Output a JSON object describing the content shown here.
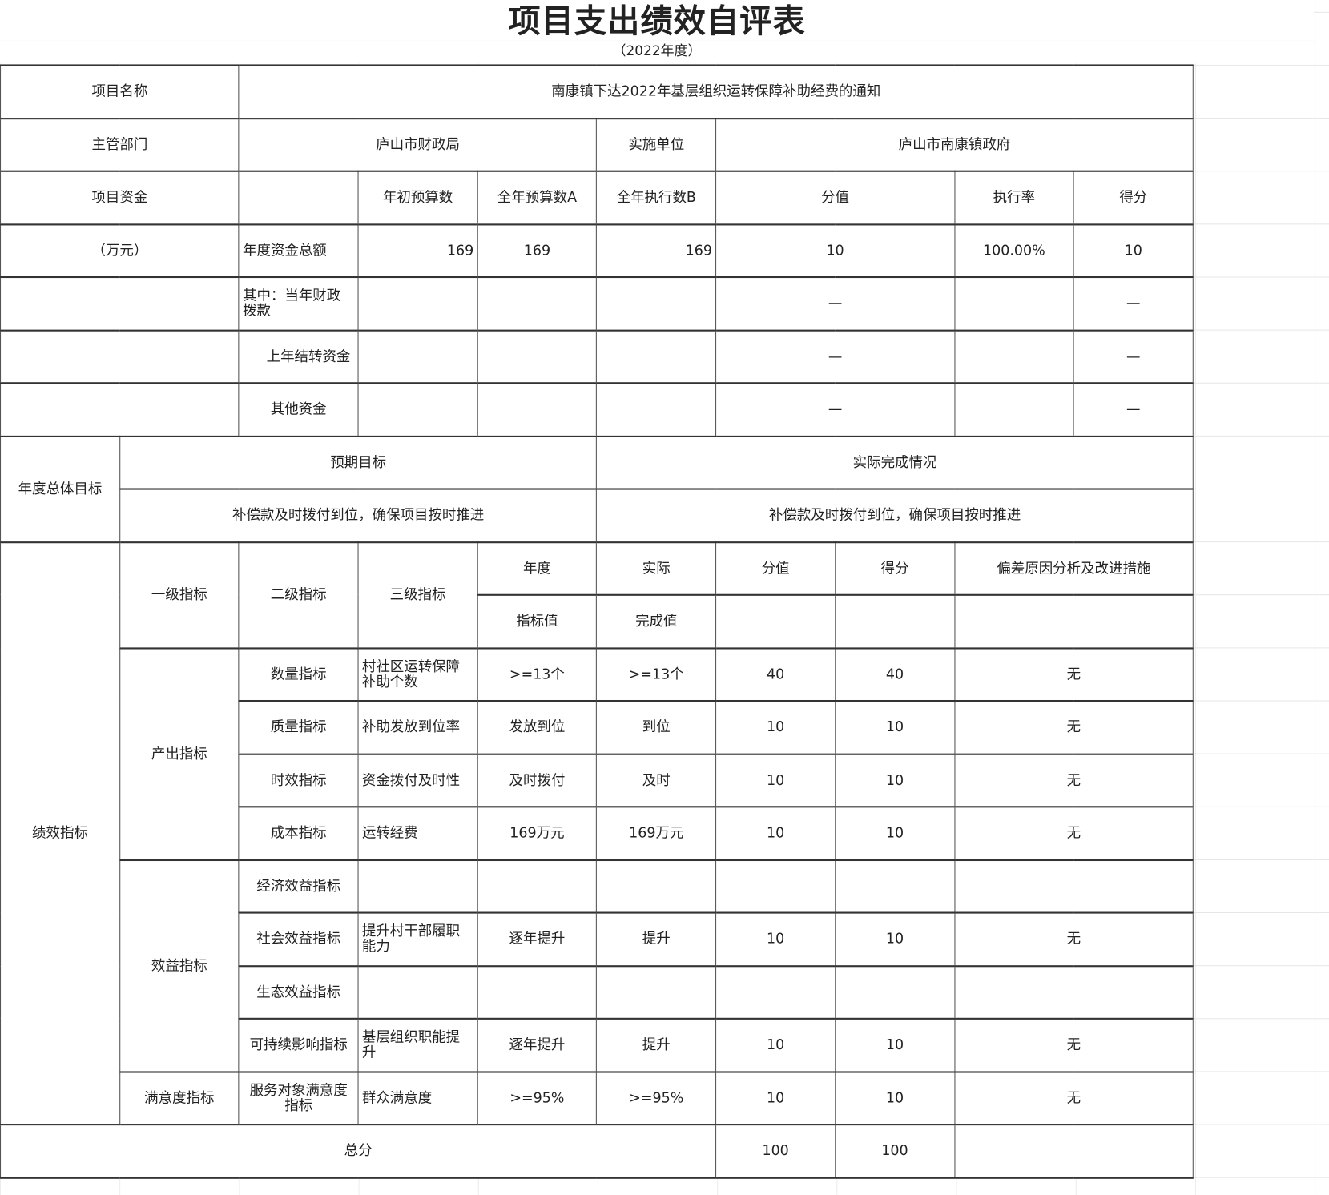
{
  "title": "项目支出绩效自评表",
  "subtitle": "（2022年度）",
  "rows": [
    [
      "项目名称",
      "南康镇下达2022年基层组织运转保障补助经费的通知"
    ],
    [
      "主管部门",
      "庐山市财政局",
      "实施单位",
      "庐山市南康镇政府"
    ],
    [
      "项目资金",
      "",
      "年初预算数",
      "全年预算数A",
      "全年执行数B",
      "分值",
      "执行率",
      "得分"
    ],
    [
      "（万元）",
      "年度资金总额",
      "169",
      "169",
      "169",
      "10",
      "100.00%",
      "10"
    ],
    [
      "",
      "其中：当年财政拨款",
      "",
      "",
      "",
      "—",
      "",
      "—"
    ],
    [
      "",
      "上年结转资金",
      "",
      "",
      "",
      "—",
      "",
      "—"
    ],
    [
      "",
      "其他资金",
      "",
      "",
      "",
      "—",
      "",
      "—"
    ],
    [
      "年度总体目标",
      "预期目标",
      "实际完成情况"
    ],
    [
      "补偿款及时拨付到位，确保项目按时推进",
      "补偿款及时拨付到位，确保项目按时推进"
    ],
    [
      "绩效指标",
      "一级指标",
      "二级指标",
      "三级指标",
      "年度",
      "实际",
      "分值",
      "得分",
      "偏差原因分析及改进措施"
    ],
    [
      "指标值",
      "完成值",
      "",
      "",
      ""
    ],
    [
      "产出指标",
      "数量指标",
      "村社区运转保障补助个数",
      ">=13个",
      ">=13个",
      "40",
      "40",
      "无"
    ],
    [
      "质量指标",
      "补助发放到位率",
      "发放到位",
      "到位",
      "10",
      "10",
      "无"
    ],
    [
      "时效指标",
      "资金拨付及时性",
      "及时拨付",
      "及时",
      "10",
      "10",
      "无"
    ],
    [
      "成本指标",
      "运转经费",
      "169万元",
      "169万元",
      "10",
      "10",
      "无"
    ],
    [
      "效益指标",
      "经济效益指标",
      "",
      "",
      "",
      "",
      "",
      ""
    ],
    [
      "社会效益指标",
      "提升村干部履职能力",
      "逐年提升",
      "提升",
      "10",
      "10",
      "无"
    ],
    [
      "生态效益指标",
      "",
      "",
      "",
      "",
      "",
      ""
    ],
    [
      "可持续影响指标",
      "基层组织职能提升",
      "逐年提升",
      "提升",
      "10",
      "10",
      "无"
    ],
    [
      "满意度指标",
      "服务对象满意度指标",
      "群众满意度",
      ">=95%",
      ">=95%",
      "10",
      "10",
      "无"
    ],
    [
      "总分",
      "100",
      "100",
      ""
    ]
  ]
}
